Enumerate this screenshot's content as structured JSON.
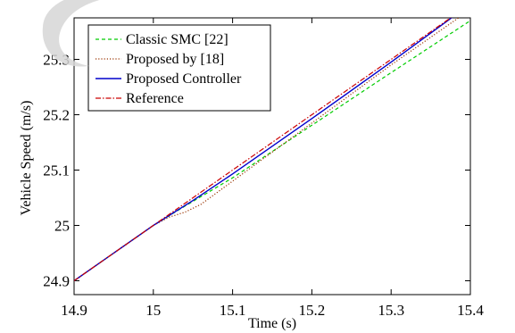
{
  "chart_data": {
    "type": "line",
    "xlabel": "Time (s)",
    "ylabel": "Vehicle Speed (m/s)",
    "xlim": [
      14.9,
      15.4
    ],
    "ylim": [
      24.875,
      25.375
    ],
    "xticks": [
      14.9,
      15,
      15.1,
      15.2,
      15.3,
      15.4
    ],
    "xtick_labels": [
      "14.9",
      "15",
      "15.1",
      "15.2",
      "15.3",
      "15.4"
    ],
    "yticks": [
      24.9,
      25,
      25.1,
      25.2,
      25.3
    ],
    "ytick_labels": [
      "24.9",
      "25",
      "25.1",
      "25.2",
      "25.3"
    ],
    "grid": false,
    "legend_position": "top-left",
    "series": [
      {
        "name": "Classic SMC [22]",
        "color": "#00cc00",
        "dash": "dashed",
        "points": [
          [
            14.9,
            24.9
          ],
          [
            15.0,
            25.0
          ],
          [
            15.04,
            25.035
          ],
          [
            15.1,
            25.086
          ],
          [
            15.2,
            25.181
          ],
          [
            15.3,
            25.276
          ],
          [
            15.4,
            25.37
          ]
        ]
      },
      {
        "name": "Proposed by [18]",
        "color": "#993300",
        "dash": "dotted",
        "points": [
          [
            14.9,
            24.9
          ],
          [
            15.0,
            25.0
          ],
          [
            15.02,
            25.015
          ],
          [
            15.04,
            25.024
          ],
          [
            15.06,
            25.038
          ],
          [
            15.1,
            25.08
          ],
          [
            15.2,
            25.185
          ],
          [
            15.3,
            25.29
          ],
          [
            15.4,
            25.39
          ]
        ]
      },
      {
        "name": "Proposed Controller",
        "color": "#0000cc",
        "dash": "solid",
        "points": [
          [
            14.9,
            24.9
          ],
          [
            15.0,
            25.0
          ],
          [
            15.05,
            25.045
          ],
          [
            15.1,
            25.093
          ],
          [
            15.2,
            25.193
          ],
          [
            15.3,
            25.295
          ],
          [
            15.4,
            25.4
          ]
        ]
      },
      {
        "name": "Reference",
        "color": "#cc0000",
        "dash": "dashdot",
        "points": [
          [
            14.9,
            24.9
          ],
          [
            15.0,
            25.0
          ],
          [
            15.1,
            25.1
          ],
          [
            15.2,
            25.2
          ],
          [
            15.3,
            25.3
          ],
          [
            15.4,
            25.4
          ]
        ]
      }
    ]
  }
}
